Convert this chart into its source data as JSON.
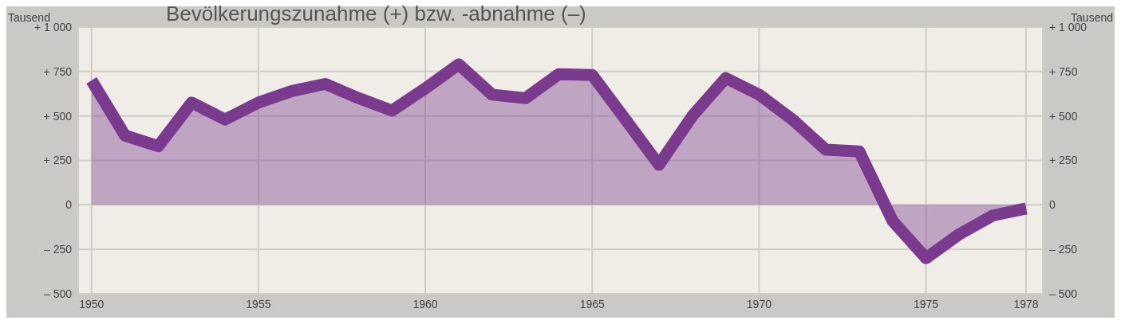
{
  "chart_data": {
    "type": "area",
    "title": "Bevölkerungszunahme (+) bzw. -abnahme (–)",
    "ylabel": "Tausend",
    "y2label": "Tausend",
    "x": [
      1950,
      1951,
      1952,
      1953,
      1954,
      1955,
      1956,
      1957,
      1958,
      1959,
      1960,
      1961,
      1962,
      1963,
      1964,
      1965,
      1966,
      1967,
      1968,
      1969,
      1970,
      1971,
      1972,
      1973,
      1974,
      1975,
      1976,
      1977,
      1978
    ],
    "series": [
      {
        "color": "#7a3a8e",
        "values": [
          700,
          390,
          330,
          575,
          480,
          575,
          640,
          680,
          600,
          530,
          655,
          790,
          620,
          600,
          735,
          730,
          480,
          225,
          500,
          713,
          620,
          480,
          310,
          300,
          -90,
          -300,
          -165,
          -60,
          -20
        ]
      }
    ],
    "xlim": [
      1949.6,
      1978.5
    ],
    "xticks": [
      1950,
      1955,
      1960,
      1965,
      1970,
      1975,
      1978
    ],
    "ylim": [
      -500,
      1000
    ],
    "yticks": [
      {
        "value": -500,
        "label": "– 500"
      },
      {
        "value": -250,
        "label": "– 250"
      },
      0,
      {
        "value": 250,
        "label": "+ 250"
      },
      {
        "value": 500,
        "label": "+ 500"
      },
      {
        "value": 750,
        "label": "+ 750"
      },
      {
        "value": 1000,
        "label": "+ 1 000"
      }
    ],
    "y2lim": [
      -500,
      1000
    ],
    "y2ticks": [
      {
        "value": -500,
        "label": "– 500"
      },
      {
        "value": -250,
        "label": "– 250"
      },
      0,
      {
        "value": 250,
        "label": "+ 250"
      },
      {
        "value": 500,
        "label": "+ 500"
      },
      {
        "value": 750,
        "label": "+ 750"
      },
      {
        "value": 1000,
        "label": "+ 1 000"
      }
    ],
    "grid": true
  }
}
